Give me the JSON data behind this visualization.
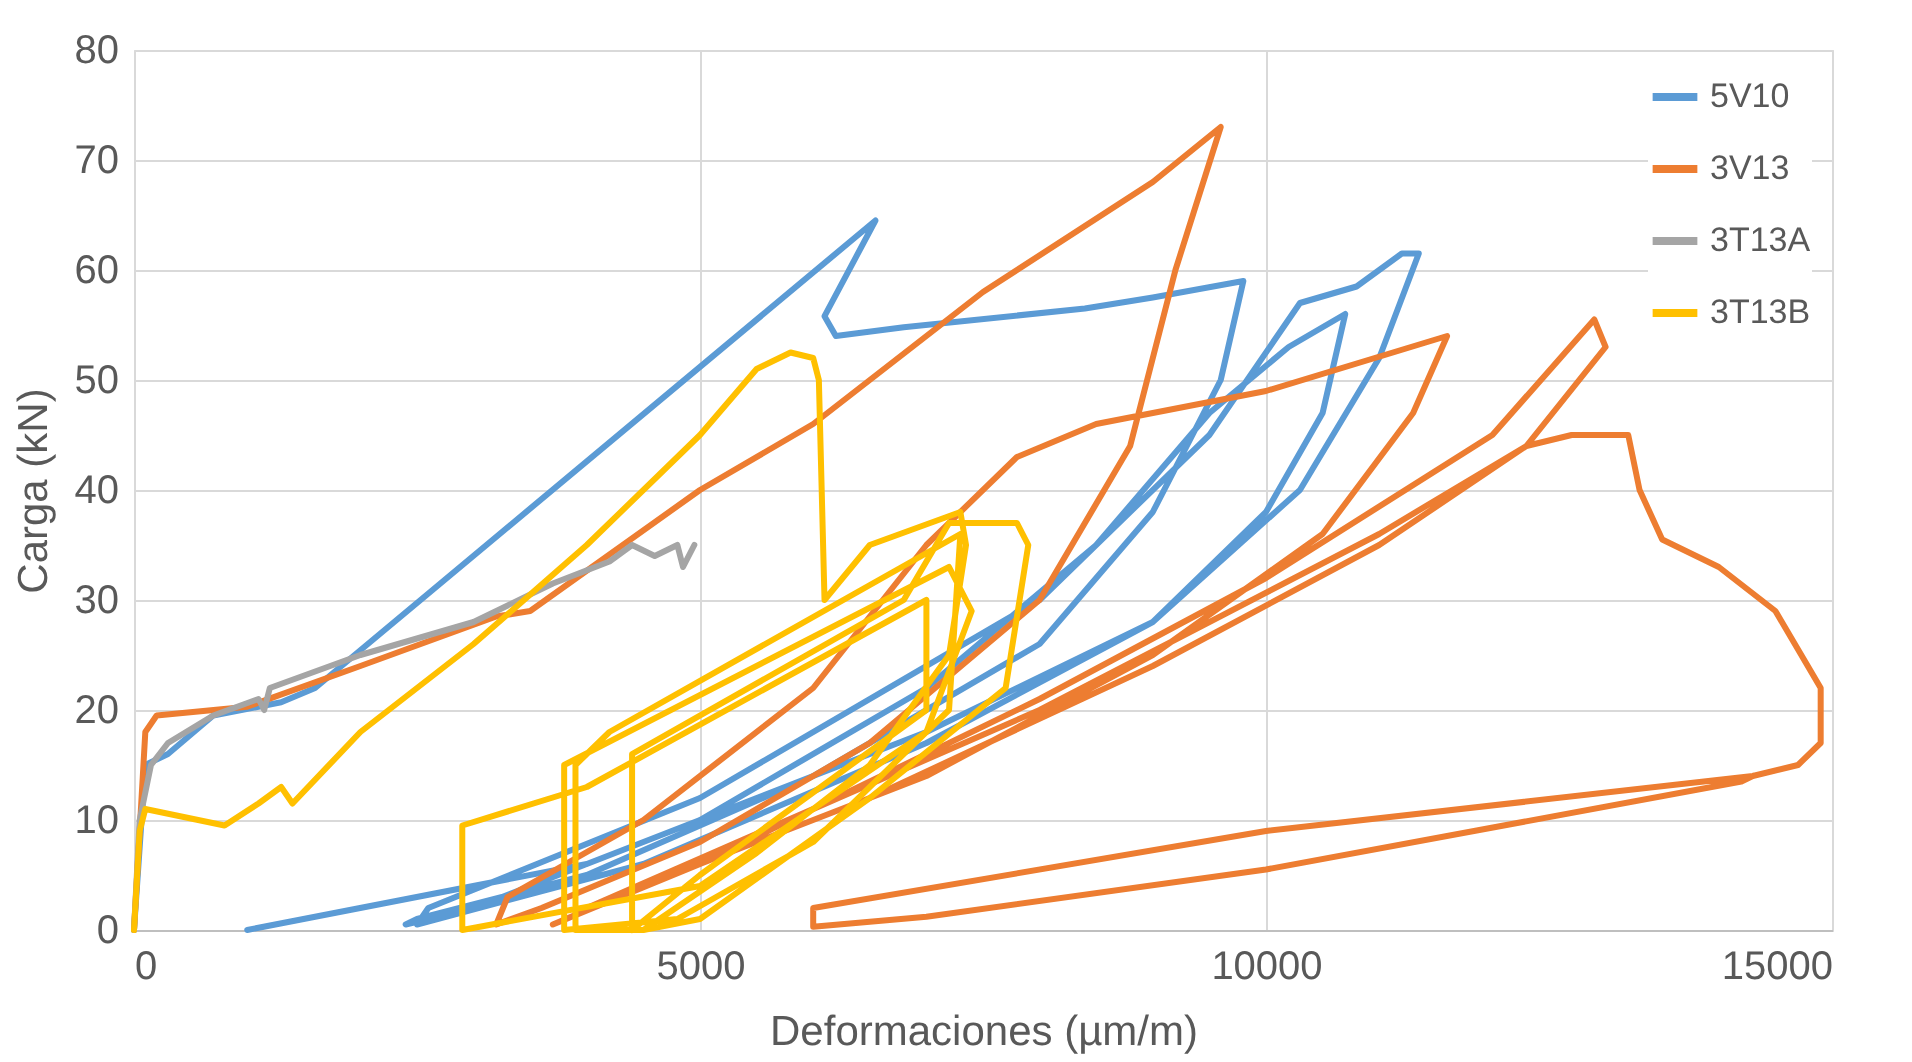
{
  "chart_data": {
    "type": "line",
    "xlabel": "Deformaciones (µm/m)",
    "ylabel": "Carga (kN)",
    "xlim": [
      0,
      15000
    ],
    "xticks": [
      0,
      5000,
      10000,
      15000
    ],
    "ylim": [
      0,
      80
    ],
    "yticks": [
      0,
      10,
      20,
      30,
      40,
      50,
      60,
      70,
      80
    ],
    "grid": true,
    "legend": "top right",
    "series": [
      {
        "name": "5V10",
        "color": "#5b9bd5",
        "x": [
          0,
          100,
          300,
          700,
          1300,
          1600,
          6550,
          6100,
          6200,
          6800,
          8400,
          9000,
          9800,
          9600,
          9000,
          8000,
          6000,
          4000,
          2500,
          2400,
          3000,
          5000,
          7000,
          8500,
          9500,
          10200,
          10700,
          10500,
          10000,
          9000,
          7000,
          4500,
          2500,
          2600,
          5000,
          8000,
          9500,
          10300,
          10800,
          11200,
          11350,
          11000,
          10300,
          9000,
          7000,
          4000,
          1000
        ],
        "values": [
          0,
          15,
          16,
          19.5,
          20.7,
          22,
          64.5,
          55.8,
          54,
          54.8,
          56.5,
          57.5,
          59,
          50,
          38,
          26,
          14,
          5,
          1,
          0.5,
          2,
          10,
          22,
          35,
          47,
          53,
          56,
          47,
          38,
          28,
          17,
          6,
          0.5,
          2,
          12,
          30,
          45,
          57,
          58.5,
          61.5,
          61.5,
          52,
          40,
          28,
          18,
          6,
          0
        ]
      },
      {
        "name": "3V13",
        "color": "#ed7d31",
        "x": [
          0,
          100,
          200,
          1000,
          2000,
          3200,
          3500,
          5000,
          6000,
          7500,
          9000,
          9600,
          9200,
          8800,
          8000,
          6500,
          5000,
          3600,
          3200,
          3300,
          4500,
          6000,
          7000,
          7800,
          8500,
          10000,
          11600,
          11300,
          10500,
          9000,
          7000,
          4500,
          3700,
          5000,
          8000,
          10000,
          12000,
          12900,
          13000,
          12300,
          11000,
          9000,
          6500,
          4000,
          8000,
          11000,
          12300,
          12700,
          13200,
          13300,
          13500,
          14000,
          14500,
          14900,
          14900,
          14700,
          14300,
          10000,
          6000,
          6000,
          7000,
          10000,
          14200,
          14300
        ],
        "values": [
          0,
          18,
          19.5,
          20.3,
          24,
          28.5,
          29,
          40,
          46,
          58,
          68,
          73,
          60,
          44,
          30,
          17,
          8,
          2,
          0.5,
          3,
          10,
          22,
          35,
          43,
          46,
          49,
          54,
          47,
          36,
          25,
          14,
          4,
          0.5,
          6,
          21,
          32,
          45,
          55.5,
          53,
          44,
          35,
          24,
          12,
          2,
          20,
          36,
          44,
          45,
          45,
          40,
          35.5,
          33,
          29,
          22,
          17,
          15,
          14,
          9,
          2,
          0.3,
          1.2,
          5.5,
          13.5,
          14
        ]
      },
      {
        "name": "3T13A",
        "color": "#a5a5a5",
        "x": [
          0,
          50,
          150,
          300,
          700,
          1100,
          1150,
          1200,
          2000,
          3000,
          3700,
          4200,
          4400,
          4600,
          4800,
          4850,
          4950
        ],
        "values": [
          0,
          10,
          15,
          17,
          19.5,
          21,
          20,
          22,
          25,
          28,
          31.5,
          33.5,
          35,
          34,
          35,
          33,
          35
        ]
      },
      {
        "name": "3T13B",
        "color": "#ffc000",
        "x": [
          0,
          50,
          100,
          800,
          1100,
          1300,
          1400,
          2000,
          3000,
          4000,
          5000,
          5500,
          5800,
          6000,
          6050,
          6100,
          6500,
          7300,
          7350,
          7200,
          6500,
          5500,
          4500,
          3900,
          3900,
          4200,
          7300,
          7200,
          6000,
          4800,
          3800,
          3800,
          7200,
          7400,
          7000,
          5000,
          2900,
          2900,
          4000,
          7000,
          7000,
          5000,
          4400,
          4400,
          6800,
          7200,
          7800,
          7900,
          7700,
          6500,
          5000,
          4500
        ],
        "values": [
          0,
          9,
          11,
          9.5,
          11.5,
          13,
          11.5,
          18,
          26,
          35,
          45,
          51,
          52.5,
          52,
          50,
          30,
          35,
          38,
          35,
          25,
          15,
          7,
          0,
          0,
          15,
          18,
          36,
          20,
          8,
          1,
          0,
          15,
          33,
          29,
          18,
          4,
          0,
          9.5,
          13,
          30,
          20,
          5,
          0,
          16,
          30,
          37,
          37,
          35,
          22,
          12,
          1,
          0
        ]
      }
    ]
  }
}
